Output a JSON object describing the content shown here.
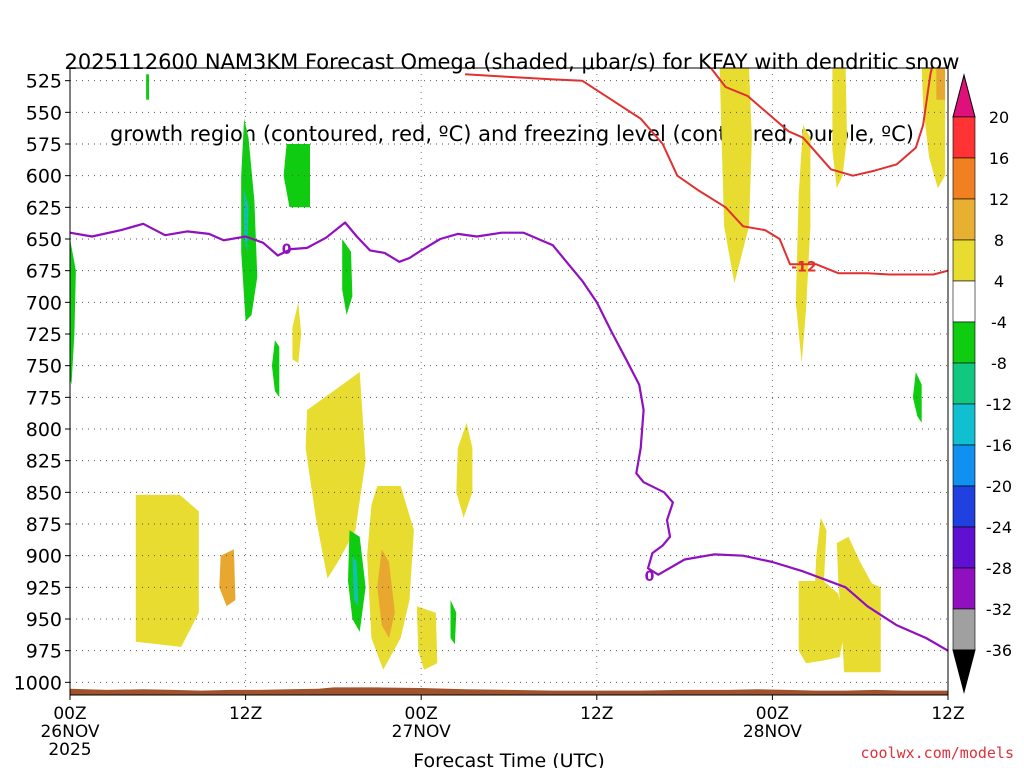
{
  "title": {
    "line1": "2025112600 NAM3KM Forecast Omega (shaded, μbar/s) for KFAY with dendritic snow",
    "line2": "growth region (contoured, red, ºC) and freezing level (contoured, purple, ºC)"
  },
  "watermark": "coolwx.com/models",
  "chart_data": {
    "type": "heatmap",
    "xlabel": "Forecast Time (UTC)",
    "ylabel": "",
    "y_axis": {
      "scale": "pressure",
      "inverted": true,
      "ylim": [
        515,
        1010
      ],
      "ticks": [
        525,
        550,
        575,
        600,
        625,
        650,
        675,
        700,
        725,
        750,
        775,
        800,
        825,
        850,
        875,
        900,
        925,
        950,
        975,
        1000
      ]
    },
    "x_axis": {
      "xlim": [
        0,
        60
      ],
      "ticks": [
        {
          "hour": 0,
          "l1": "00Z",
          "l2": "26NOV",
          "l3": "2025"
        },
        {
          "hour": 12,
          "l1": "12Z",
          "l2": "",
          "l3": ""
        },
        {
          "hour": 24,
          "l1": "00Z",
          "l2": "27NOV",
          "l3": ""
        },
        {
          "hour": 36,
          "l1": "12Z",
          "l2": "",
          "l3": ""
        },
        {
          "hour": 48,
          "l1": "00Z",
          "l2": "28NOV",
          "l3": ""
        },
        {
          "hour": 60,
          "l1": "12Z",
          "l2": "",
          "l3": ""
        }
      ]
    },
    "grid": true,
    "colorbar": {
      "labels": [
        "20",
        "16",
        "12",
        "8",
        "4",
        "-4",
        "-8",
        "-12",
        "-16",
        "-20",
        "-24",
        "-28",
        "-32",
        "-36"
      ],
      "colors": [
        "#ff3333",
        "#f08020",
        "#e8b030",
        "#e8dc30",
        "#ffffff",
        "#10cc10",
        "#10c880",
        "#10c0d0",
        "#1090f0",
        "#2040e0",
        "#6010d0",
        "#9010c0",
        "#a0a0a0"
      ],
      "top_color": "#e0107a",
      "bottom_color": "#000000"
    },
    "shading_colors": {
      "positive_4": "#e8dc30",
      "positive_8": "#e8a830",
      "negative_4": "#10cc10",
      "negative_8": "#10c0b0"
    },
    "omega_regions": [
      {
        "v": 4,
        "pts": [
          [
            4.5,
            852
          ],
          [
            7.5,
            852
          ],
          [
            8.8,
            865
          ],
          [
            8.8,
            945
          ],
          [
            7.6,
            972
          ],
          [
            4.5,
            968
          ]
        ]
      },
      {
        "v": 8,
        "pts": [
          [
            10.3,
            900
          ],
          [
            11.2,
            895
          ],
          [
            11.3,
            935
          ],
          [
            10.7,
            940
          ],
          [
            10.2,
            925
          ]
        ]
      },
      {
        "v": 4,
        "pts": [
          [
            16.2,
            785
          ],
          [
            18.6,
            765
          ],
          [
            19.8,
            755
          ],
          [
            20.2,
            825
          ],
          [
            19.5,
            880
          ],
          [
            18.3,
            905
          ],
          [
            17.6,
            918
          ],
          [
            16.8,
            870
          ],
          [
            16.1,
            815
          ]
        ]
      },
      {
        "v": 4,
        "pts": [
          [
            21.0,
            845
          ],
          [
            22.6,
            845
          ],
          [
            23.5,
            880
          ],
          [
            23.2,
            935
          ],
          [
            22.6,
            965
          ],
          [
            21.4,
            990
          ],
          [
            20.6,
            965
          ],
          [
            20.3,
            900
          ],
          [
            20.6,
            860
          ]
        ]
      },
      {
        "v": 8,
        "pts": [
          [
            21.3,
            895
          ],
          [
            21.8,
            905
          ],
          [
            22.2,
            945
          ],
          [
            21.8,
            965
          ],
          [
            21.3,
            955
          ],
          [
            21.0,
            925
          ]
        ]
      },
      {
        "v": 4,
        "pts": [
          [
            23.7,
            940
          ],
          [
            25.0,
            945
          ],
          [
            25.1,
            985
          ],
          [
            24.2,
            990
          ],
          [
            23.8,
            975
          ]
        ]
      },
      {
        "v": 4,
        "pts": [
          [
            26.5,
            815
          ],
          [
            27.1,
            795
          ],
          [
            27.5,
            815
          ],
          [
            27.5,
            850
          ],
          [
            26.9,
            870
          ],
          [
            26.4,
            850
          ]
        ]
      },
      {
        "v": 4,
        "pts": [
          [
            15.2,
            720
          ],
          [
            15.6,
            700
          ],
          [
            15.8,
            725
          ],
          [
            15.6,
            748
          ],
          [
            15.2,
            745
          ]
        ]
      },
      {
        "v": 4,
        "pts": [
          [
            44.4,
            515
          ],
          [
            46.4,
            515
          ],
          [
            46.6,
            570
          ],
          [
            46.4,
            640
          ],
          [
            45.4,
            685
          ],
          [
            44.7,
            640
          ],
          [
            44.5,
            560
          ]
        ]
      },
      {
        "v": 4,
        "pts": [
          [
            50.1,
            560
          ],
          [
            50.6,
            570
          ],
          [
            50.6,
            640
          ],
          [
            50.3,
            705
          ],
          [
            50.0,
            748
          ],
          [
            49.6,
            700
          ],
          [
            49.8,
            615
          ]
        ]
      },
      {
        "v": 4,
        "pts": [
          [
            52.1,
            515
          ],
          [
            53.0,
            515
          ],
          [
            53.1,
            570
          ],
          [
            52.8,
            600
          ],
          [
            52.4,
            610
          ],
          [
            52.1,
            580
          ]
        ]
      },
      {
        "v": 4,
        "pts": [
          [
            58.2,
            515
          ],
          [
            59.8,
            515
          ],
          [
            59.8,
            600
          ],
          [
            59.3,
            610
          ],
          [
            58.7,
            585
          ],
          [
            58.3,
            545
          ]
        ]
      },
      {
        "v": 8,
        "pts": [
          [
            59.2,
            515
          ],
          [
            59.8,
            515
          ],
          [
            59.8,
            540
          ],
          [
            59.2,
            540
          ]
        ]
      },
      {
        "v": 4,
        "pts": [
          [
            49.8,
            920
          ],
          [
            51.5,
            920
          ],
          [
            52.5,
            930
          ],
          [
            53.0,
            955
          ],
          [
            52.6,
            980
          ],
          [
            51.4,
            983
          ],
          [
            50.3,
            985
          ],
          [
            49.8,
            975
          ]
        ]
      },
      {
        "v": 4,
        "pts": [
          [
            52.4,
            890
          ],
          [
            53.2,
            885
          ],
          [
            54.0,
            905
          ],
          [
            54.8,
            922
          ],
          [
            55.4,
            925
          ],
          [
            55.4,
            992
          ],
          [
            52.9,
            992
          ],
          [
            52.7,
            950
          ],
          [
            52.5,
            920
          ]
        ]
      },
      {
        "v": 4,
        "pts": [
          [
            51.3,
            870
          ],
          [
            51.7,
            880
          ],
          [
            51.5,
            925
          ],
          [
            51.1,
            955
          ],
          [
            50.8,
            950
          ],
          [
            51.0,
            900
          ]
        ]
      },
      {
        "v": -4,
        "pts": [
          [
            0.0,
            650
          ],
          [
            0.4,
            675
          ],
          [
            0.3,
            725
          ],
          [
            0.1,
            765
          ],
          [
            0.0,
            760
          ]
        ]
      },
      {
        "v": -4,
        "pts": [
          [
            5.2,
            520
          ],
          [
            5.4,
            520
          ],
          [
            5.4,
            540
          ],
          [
            5.2,
            540
          ]
        ]
      },
      {
        "v": -4,
        "pts": [
          [
            11.9,
            555
          ],
          [
            12.2,
            570
          ],
          [
            12.6,
            620
          ],
          [
            12.8,
            680
          ],
          [
            12.4,
            710
          ],
          [
            12.0,
            715
          ],
          [
            11.7,
            660
          ],
          [
            11.7,
            600
          ]
        ]
      },
      {
        "v": -8,
        "pts": [
          [
            11.9,
            610
          ],
          [
            12.2,
            625
          ],
          [
            12.1,
            660
          ],
          [
            11.9,
            650
          ]
        ]
      },
      {
        "v": -4,
        "pts": [
          [
            14.8,
            575
          ],
          [
            16.4,
            575
          ],
          [
            16.4,
            625
          ],
          [
            15.0,
            625
          ],
          [
            14.6,
            600
          ]
        ]
      },
      {
        "v": -4,
        "pts": [
          [
            18.6,
            650
          ],
          [
            19.2,
            660
          ],
          [
            19.3,
            695
          ],
          [
            18.9,
            710
          ],
          [
            18.6,
            690
          ]
        ]
      },
      {
        "v": -4,
        "pts": [
          [
            14.0,
            730
          ],
          [
            14.3,
            735
          ],
          [
            14.3,
            775
          ],
          [
            14.0,
            770
          ],
          [
            13.8,
            750
          ]
        ]
      },
      {
        "v": -4,
        "pts": [
          [
            19.1,
            880
          ],
          [
            19.8,
            885
          ],
          [
            20.2,
            925
          ],
          [
            19.8,
            960
          ],
          [
            19.3,
            950
          ],
          [
            19.0,
            920
          ]
        ]
      },
      {
        "v": -8,
        "pts": [
          [
            19.3,
            900
          ],
          [
            19.6,
            905
          ],
          [
            19.7,
            940
          ],
          [
            19.4,
            935
          ]
        ]
      },
      {
        "v": -4,
        "pts": [
          [
            26.0,
            935
          ],
          [
            26.4,
            945
          ],
          [
            26.3,
            970
          ],
          [
            26.0,
            965
          ]
        ]
      },
      {
        "v": -4,
        "pts": [
          [
            57.8,
            755
          ],
          [
            58.2,
            765
          ],
          [
            58.2,
            795
          ],
          [
            57.9,
            790
          ],
          [
            57.6,
            775
          ]
        ]
      }
    ],
    "freezing_level": {
      "label": "0",
      "color": "#9010c0",
      "points": [
        [
          0,
          645
        ],
        [
          1.5,
          648
        ],
        [
          3.5,
          643
        ],
        [
          5.0,
          638
        ],
        [
          6.5,
          647
        ],
        [
          8,
          644
        ],
        [
          9.5,
          646
        ],
        [
          10.5,
          651
        ],
        [
          12,
          648
        ],
        [
          13.2,
          653
        ],
        [
          14.2,
          663
        ],
        [
          15.1,
          658
        ],
        [
          16.2,
          657
        ],
        [
          17.5,
          649
        ],
        [
          18.8,
          637
        ],
        [
          19.6,
          648
        ],
        [
          20.5,
          659
        ],
        [
          21.5,
          661
        ],
        [
          22.5,
          668
        ],
        [
          23.2,
          665
        ],
        [
          24.0,
          659
        ],
        [
          25.3,
          650
        ],
        [
          26.5,
          646
        ],
        [
          27.8,
          648
        ],
        [
          29.5,
          645
        ],
        [
          31,
          645
        ],
        [
          33,
          655
        ],
        [
          34,
          669
        ],
        [
          35,
          683
        ],
        [
          36,
          700
        ],
        [
          37,
          723
        ],
        [
          38,
          745
        ],
        [
          38.9,
          765
        ],
        [
          39.2,
          785
        ],
        [
          39.0,
          815
        ],
        [
          38.7,
          835
        ],
        [
          39.2,
          842
        ],
        [
          40.6,
          850
        ],
        [
          41.2,
          858
        ],
        [
          40.8,
          872
        ],
        [
          41.0,
          885
        ],
        [
          40.5,
          892
        ],
        [
          39.8,
          898
        ],
        [
          39.5,
          910
        ],
        [
          40.2,
          915
        ],
        [
          42,
          903
        ],
        [
          44,
          899
        ],
        [
          46,
          900
        ],
        [
          48,
          905
        ],
        [
          50,
          912
        ],
        [
          53,
          925
        ],
        [
          54.5,
          940
        ],
        [
          56.5,
          955
        ],
        [
          58.5,
          965
        ],
        [
          60,
          975
        ]
      ],
      "label_pos": [
        14.8,
        658
      ]
    },
    "dgz_isotherm": {
      "label": "-12",
      "color": "#e03030",
      "points": [
        [
          27,
          520
        ],
        [
          30,
          522
        ],
        [
          33,
          524
        ],
        [
          35,
          525
        ],
        [
          37,
          540
        ],
        [
          39,
          555
        ],
        [
          40.5,
          575
        ],
        [
          41.5,
          600
        ],
        [
          43.0,
          612
        ],
        [
          44.8,
          625
        ],
        [
          46.0,
          640
        ],
        [
          47.5,
          643
        ],
        [
          48.5,
          650
        ],
        [
          49.2,
          670
        ],
        [
          50,
          670
        ],
        [
          51,
          670
        ],
        [
          52.5,
          677
        ],
        [
          54.5,
          677
        ],
        [
          56,
          678
        ],
        [
          57.5,
          678
        ],
        [
          59,
          678
        ],
        [
          60,
          675
        ]
      ],
      "label_pos": [
        49.2,
        671
      ]
    },
    "dgz_upper": {
      "color": "#e03030",
      "points": [
        [
          43.8,
          515
        ],
        [
          44.8,
          530
        ],
        [
          46.3,
          537
        ],
        [
          47.6,
          550
        ],
        [
          49.1,
          565
        ],
        [
          50.1,
          570
        ],
        [
          52.0,
          595
        ],
        [
          53.5,
          600
        ],
        [
          55,
          596
        ],
        [
          56.5,
          591
        ],
        [
          57.8,
          578
        ],
        [
          58.3,
          560
        ],
        [
          58.8,
          520
        ],
        [
          58.9,
          515
        ]
      ]
    },
    "ground": {
      "color": "#a0522d",
      "points": [
        [
          0,
          1005
        ],
        [
          2.5,
          1006
        ],
        [
          5,
          1005.5
        ],
        [
          7,
          1006
        ],
        [
          9,
          1006.5
        ],
        [
          11,
          1006
        ],
        [
          13,
          1006
        ],
        [
          15,
          1005.5
        ],
        [
          17,
          1005
        ],
        [
          18,
          1004
        ],
        [
          21,
          1004
        ],
        [
          24,
          1004.5
        ],
        [
          27,
          1005.5
        ],
        [
          30,
          1006
        ],
        [
          33,
          1006.5
        ],
        [
          36,
          1006.5
        ],
        [
          39,
          1006.5
        ],
        [
          42,
          1006
        ],
        [
          45,
          1006
        ],
        [
          47,
          1005.5
        ],
        [
          49,
          1006
        ],
        [
          51,
          1006.5
        ],
        [
          53,
          1006.5
        ],
        [
          55,
          1006
        ],
        [
          57,
          1006.5
        ],
        [
          60,
          1006.5
        ]
      ]
    }
  }
}
